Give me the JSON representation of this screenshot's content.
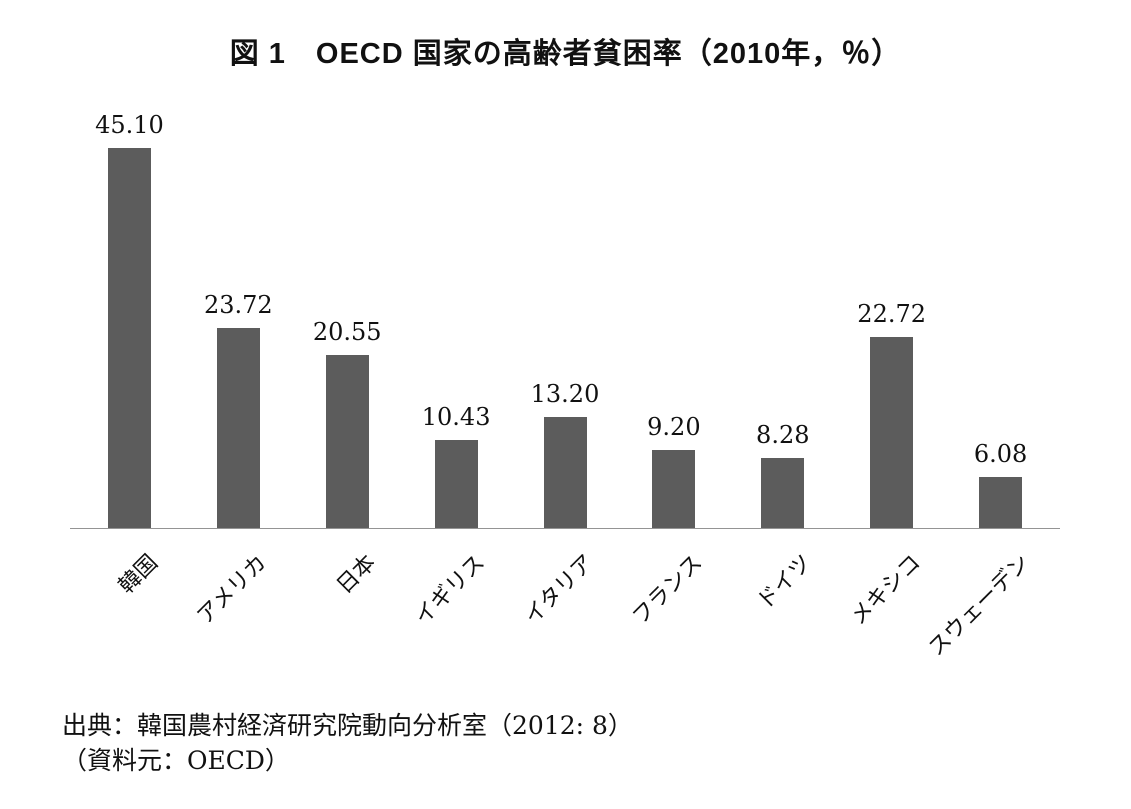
{
  "title": "図 1　OECD 国家の高齢者貧困率（2010年，％）",
  "source": {
    "line1": "出典：韓国農村経済研究院動向分析室（2012: 8）",
    "line2": "（資料元：OECD）"
  },
  "colors": {
    "bar": "#5c5c5c",
    "axis": "#949494",
    "text": "#111111"
  },
  "chart_data": {
    "type": "bar",
    "title": "図 1　OECD 国家の高齢者貧困率（2010年，％）",
    "categories": [
      "韓国",
      "アメリカ",
      "日本",
      "イギリス",
      "イタリア",
      "フランス",
      "ドイツ",
      "メキシコ",
      "スウェーデン"
    ],
    "values": [
      45.1,
      23.72,
      20.55,
      10.43,
      13.2,
      9.2,
      8.28,
      22.72,
      6.08
    ],
    "value_labels": [
      "45.10",
      "23.72",
      "20.55",
      "10.43",
      "13.20",
      "9.20",
      "8.28",
      "22.72",
      "6.08"
    ],
    "xlabel": "",
    "ylabel": "",
    "ylim": [
      0,
      48
    ],
    "grid": false,
    "legend": false,
    "bar_label_position": "above",
    "x_tick_rotation_deg": -45
  }
}
